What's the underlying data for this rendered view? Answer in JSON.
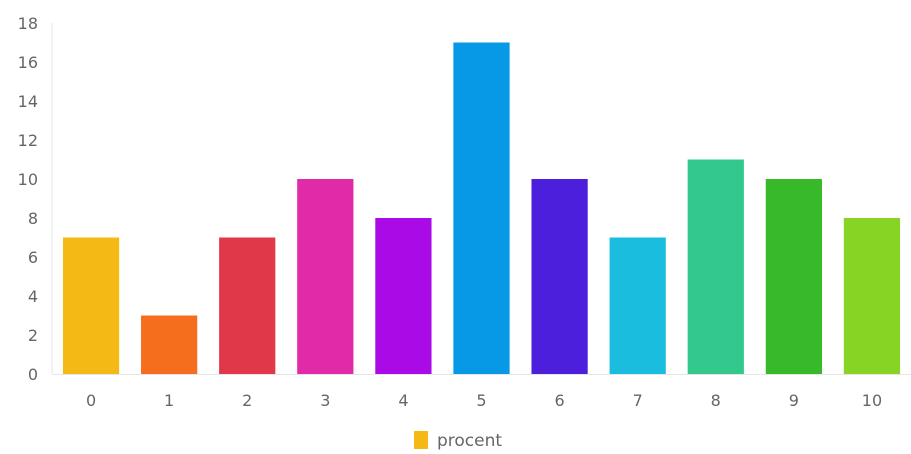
{
  "chart_data": {
    "type": "bar",
    "categories": [
      "0",
      "1",
      "2",
      "3",
      "4",
      "5",
      "6",
      "7",
      "8",
      "9",
      "10"
    ],
    "series": [
      {
        "name": "procent",
        "values": [
          7,
          3,
          7,
          10,
          8,
          17,
          10,
          7,
          11,
          10,
          8
        ]
      }
    ],
    "bar_colors": [
      "#f5b915",
      "#f56e1e",
      "#e03848",
      "#e02aa8",
      "#a90ae6",
      "#0799e6",
      "#4c1fdd",
      "#1bbddf",
      "#33c88c",
      "#37b92a",
      "#87d424"
    ],
    "legend_color": "#f5b915",
    "title": "",
    "xlabel": "",
    "ylabel": "",
    "ylim": [
      0,
      18
    ],
    "yticks": [
      0,
      2,
      4,
      6,
      8,
      10,
      12,
      14,
      16,
      18
    ],
    "grid": false,
    "legend_position": "bottom"
  }
}
